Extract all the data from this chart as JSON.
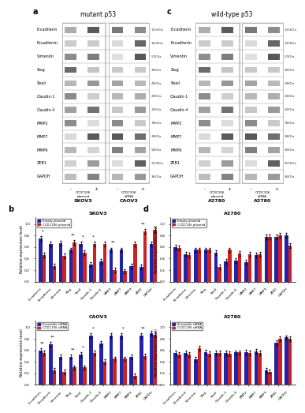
{
  "title_left": "mutant p53",
  "title_right": "wild-type p53",
  "markers": [
    "E-cadherin",
    "N-cadherin",
    "Vimentin",
    "Slug",
    "Snail",
    "Claudin-1",
    "Claudin-4",
    "MMP2",
    "MMP7",
    "MMP9",
    "ZEB1",
    "GAPDH"
  ],
  "mw_labels": [
    "135KDa",
    "140KDa",
    "57KDa",
    "30KDa",
    "29KDa",
    "20KDa",
    "22KDa",
    "78KDa",
    "28KDa",
    "92KDa",
    "210KDa",
    "36KDa"
  ],
  "bar_categories": [
    "E-cadherin",
    "N-cadherin",
    "Vimentin",
    "Slug",
    "Snail",
    "Claudin-1",
    "Claudin-4",
    "MMP2",
    "MMP7",
    "MMP9",
    "ZEB1",
    "GAPDH"
  ],
  "color_empty": "#2222aa",
  "color_ccdc106": "#cc2222",
  "legend_empty_plasmid": "Empty plasmid",
  "legend_ccdc106_plasmid": "CCDC106 plasmid",
  "legend_scramble": "Scramble siRNA",
  "legend_ccdc106_sirna": "CCDC106 siRNA",
  "ylabel_bar": "Relative expression level",
  "skov3_plasmid_empty": [
    0.75,
    0.65,
    0.67,
    0.55,
    0.65,
    0.3,
    0.35,
    0.55,
    0.55,
    0.27,
    0.25,
    0.65
  ],
  "skov3_plasmid_ccdc106": [
    0.46,
    0.27,
    0.45,
    0.68,
    0.5,
    0.65,
    0.65,
    0.2,
    0.18,
    0.65,
    0.87,
    0.9
  ],
  "skov3_plasmid_err_e": [
    0.04,
    0.04,
    0.04,
    0.04,
    0.04,
    0.04,
    0.04,
    0.04,
    0.04,
    0.04,
    0.04,
    0.04
  ],
  "skov3_plasmid_err_c": [
    0.04,
    0.04,
    0.04,
    0.04,
    0.04,
    0.04,
    0.04,
    0.04,
    0.04,
    0.04,
    0.04,
    0.04
  ],
  "skov3_plasmid_sig": [
    "*",
    "",
    "",
    "**",
    "*",
    "*",
    "",
    "**",
    "",
    "",
    "**",
    ""
  ],
  "caov3_sirna_scramble": [
    0.6,
    0.7,
    0.48,
    0.48,
    0.52,
    0.85,
    0.72,
    0.85,
    0.85,
    0.48,
    0.85,
    0.9
  ],
  "caov3_sirna_ccdc106": [
    0.55,
    0.25,
    0.22,
    0.3,
    0.3,
    0.55,
    0.4,
    0.45,
    0.45,
    0.15,
    0.5,
    0.87
  ],
  "caov3_sirna_err_s": [
    0.04,
    0.04,
    0.04,
    0.04,
    0.04,
    0.04,
    0.04,
    0.04,
    0.04,
    0.04,
    0.04,
    0.04
  ],
  "caov3_sirna_err_c": [
    0.04,
    0.04,
    0.04,
    0.04,
    0.04,
    0.04,
    0.04,
    0.04,
    0.04,
    0.04,
    0.04,
    0.04
  ],
  "caov3_sirna_sig": [
    "**",
    "**",
    "",
    "**",
    "*",
    "*",
    "",
    "",
    "*",
    "",
    "**",
    ""
  ],
  "a2780_plasmid_empty": [
    0.6,
    0.48,
    0.55,
    0.55,
    0.5,
    0.35,
    0.37,
    0.34,
    0.46,
    0.77,
    0.77,
    0.8
  ],
  "a2780_plasmid_ccdc106": [
    0.58,
    0.46,
    0.55,
    0.55,
    0.25,
    0.55,
    0.49,
    0.47,
    0.47,
    0.77,
    0.8,
    0.62
  ],
  "a2780_plasmid_err_e": [
    0.04,
    0.04,
    0.04,
    0.04,
    0.04,
    0.04,
    0.04,
    0.04,
    0.04,
    0.04,
    0.04,
    0.04
  ],
  "a2780_plasmid_err_c": [
    0.04,
    0.04,
    0.04,
    0.04,
    0.04,
    0.04,
    0.04,
    0.04,
    0.04,
    0.04,
    0.04,
    0.04
  ],
  "a2780_plasmid_sig": [
    "",
    "",
    "",
    "",
    "",
    "",
    "",
    "",
    "",
    "",
    "",
    ""
  ],
  "a2780_sirna_scramble": [
    0.55,
    0.55,
    0.44,
    0.57,
    0.55,
    0.55,
    0.56,
    0.57,
    0.58,
    0.25,
    0.73,
    0.82
  ],
  "a2780_sirna_ccdc106": [
    0.52,
    0.53,
    0.63,
    0.54,
    0.55,
    0.54,
    0.56,
    0.55,
    0.55,
    0.23,
    0.8,
    0.8
  ],
  "a2780_sirna_err_s": [
    0.04,
    0.04,
    0.04,
    0.04,
    0.04,
    0.04,
    0.04,
    0.04,
    0.04,
    0.04,
    0.04,
    0.04
  ],
  "a2780_sirna_err_c": [
    0.04,
    0.04,
    0.04,
    0.04,
    0.04,
    0.04,
    0.04,
    0.04,
    0.04,
    0.04,
    0.04,
    0.04
  ],
  "a2780_sirna_sig": [
    "",
    "",
    "",
    "",
    "",
    "",
    "",
    "",
    "",
    "",
    "",
    ""
  ]
}
